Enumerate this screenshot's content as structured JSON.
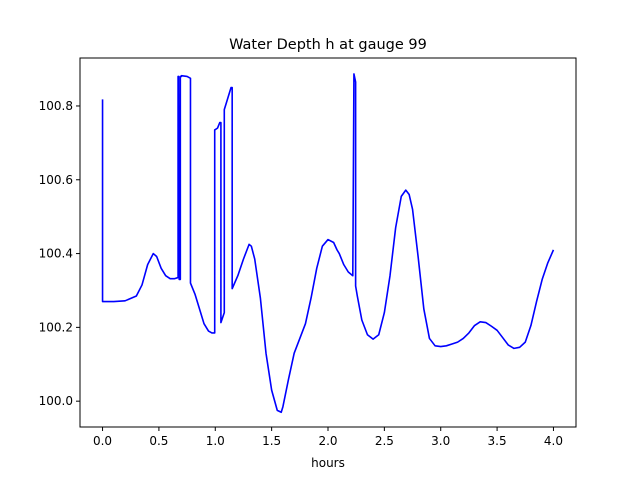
{
  "chart_data": {
    "type": "line",
    "title": "Water Depth h at gauge 99",
    "xlabel": "hours",
    "ylabel": "",
    "xlim": [
      -0.2,
      4.2
    ],
    "ylim": [
      99.93,
      100.93
    ],
    "xticks": [
      0.0,
      0.5,
      1.0,
      1.5,
      2.0,
      2.5,
      3.0,
      3.5,
      4.0
    ],
    "xtick_labels": [
      "0.0",
      "0.5",
      "1.0",
      "1.5",
      "2.0",
      "2.5",
      "3.0",
      "3.5",
      "4.0"
    ],
    "yticks": [
      100.0,
      100.2,
      100.4,
      100.6,
      100.8
    ],
    "ytick_labels": [
      "100.0",
      "100.2",
      "100.4",
      "100.6",
      "100.8"
    ],
    "grid": false,
    "line_color": "#0000ff",
    "series": [
      {
        "x": [
          0.0,
          0.0,
          0.001,
          0.1,
          0.2,
          0.3,
          0.35,
          0.4,
          0.45,
          0.48,
          0.52,
          0.56,
          0.6,
          0.64,
          0.67,
          0.67,
          0.675,
          0.68,
          0.69,
          0.69,
          0.695,
          0.7,
          0.7,
          0.75,
          0.78,
          0.78,
          0.82,
          0.86,
          0.9,
          0.94,
          0.97,
          0.995,
          0.995,
          1.02,
          1.04,
          1.05,
          1.05,
          1.08,
          1.08,
          1.1,
          1.14,
          1.15,
          1.15,
          1.2,
          1.25,
          1.3,
          1.32,
          1.35,
          1.4,
          1.45,
          1.5,
          1.55,
          1.585,
          1.6,
          1.65,
          1.7,
          1.75,
          1.8,
          1.85,
          1.9,
          1.95,
          2.0,
          2.05,
          2.08,
          2.1,
          2.14,
          2.18,
          2.22,
          2.23,
          2.23,
          2.245,
          2.245,
          2.26,
          2.3,
          2.35,
          2.4,
          2.45,
          2.5,
          2.55,
          2.6,
          2.65,
          2.69,
          2.72,
          2.75,
          2.8,
          2.85,
          2.9,
          2.95,
          3.0,
          3.05,
          3.1,
          3.15,
          3.2,
          3.25,
          3.3,
          3.35,
          3.4,
          3.45,
          3.5,
          3.55,
          3.6,
          3.65,
          3.7,
          3.75,
          3.8,
          3.85,
          3.9,
          3.95,
          4.0
        ],
        "y": [
          100.818,
          100.27,
          100.27,
          100.27,
          100.272,
          100.285,
          100.315,
          100.37,
          100.4,
          100.392,
          100.36,
          100.34,
          100.332,
          100.332,
          100.335,
          100.88,
          100.88,
          100.33,
          100.33,
          100.88,
          100.88,
          100.88,
          100.882,
          100.88,
          100.875,
          100.32,
          100.29,
          100.25,
          100.21,
          100.19,
          100.185,
          100.185,
          100.735,
          100.74,
          100.755,
          100.755,
          100.213,
          100.24,
          100.79,
          100.81,
          100.85,
          100.85,
          100.305,
          100.34,
          100.385,
          100.425,
          100.42,
          100.385,
          100.28,
          100.13,
          100.03,
          99.975,
          99.97,
          99.985,
          100.06,
          100.13,
          100.17,
          100.21,
          100.28,
          100.36,
          100.42,
          100.438,
          100.43,
          100.41,
          100.4,
          100.37,
          100.35,
          100.34,
          100.887,
          100.887,
          100.865,
          100.312,
          100.285,
          100.22,
          100.18,
          100.168,
          100.18,
          100.24,
          100.34,
          100.47,
          100.555,
          100.572,
          100.56,
          100.52,
          100.39,
          100.25,
          100.17,
          100.15,
          100.148,
          100.15,
          100.155,
          100.16,
          100.17,
          100.185,
          100.205,
          100.215,
          100.213,
          100.203,
          100.192,
          100.172,
          100.152,
          100.143,
          100.146,
          100.16,
          100.205,
          100.27,
          100.33,
          100.375,
          100.41
        ]
      }
    ]
  }
}
